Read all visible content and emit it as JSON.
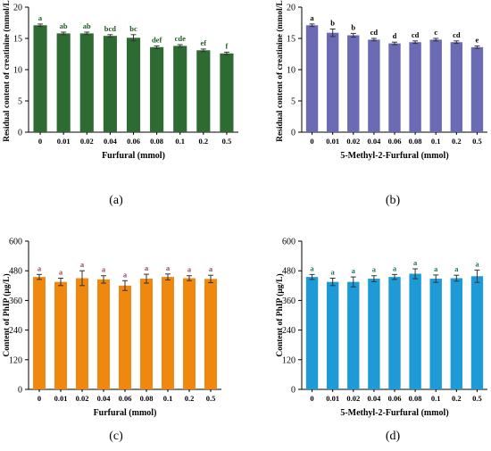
{
  "chart_data": [
    {
      "type": "bar",
      "panel_label": "(a)",
      "xlabel": "Furfural (mmol)",
      "ylabel": "Residual content of creatinine (mmol/L)",
      "categories": [
        "0",
        "0.01",
        "0.02",
        "0.04",
        "0.06",
        "0.08",
        "0.1",
        "0.2",
        "0.5"
      ],
      "values": [
        17.1,
        15.8,
        15.8,
        15.4,
        15.1,
        13.6,
        13.8,
        13.1,
        12.6
      ],
      "errors": [
        0.2,
        0.2,
        0.2,
        0.2,
        0.5,
        0.2,
        0.2,
        0.2,
        0.2
      ],
      "significance": [
        "a",
        "ab",
        "ab",
        "bcd",
        "bc",
        "def",
        "cde",
        "ef",
        "f"
      ],
      "ylim": [
        0,
        20
      ],
      "yticks": [
        "0",
        "5",
        "10",
        "15",
        "20"
      ],
      "bar_color": "#2e6b32",
      "label_color": "#1f5a25",
      "grid": false
    },
    {
      "type": "bar",
      "panel_label": "(b)",
      "xlabel": "5-Methyl-2-Furfural (mmol)",
      "ylabel": "Residual content of creatinine (mmol/L)",
      "categories": [
        "0",
        "0.01",
        "0.02",
        "0.04",
        "0.06",
        "0.08",
        "0.1",
        "0.2",
        "0.5"
      ],
      "values": [
        17.1,
        15.9,
        15.5,
        14.8,
        14.2,
        14.4,
        14.8,
        14.4,
        13.6
      ],
      "errors": [
        0.2,
        0.6,
        0.3,
        0.2,
        0.2,
        0.2,
        0.2,
        0.2,
        0.2
      ],
      "significance": [
        "a",
        "b",
        "b",
        "cd",
        "d",
        "cd",
        "c",
        "cd",
        "e"
      ],
      "ylim": [
        0,
        20
      ],
      "yticks": [
        "0",
        "5",
        "10",
        "15",
        "20"
      ],
      "bar_color": "#6a6ab5",
      "label_color": "#000000",
      "grid": false
    },
    {
      "type": "bar",
      "panel_label": "(c)",
      "xlabel": "Furfural (mmol)",
      "ylabel": "Content of PhIP (μg/L)",
      "categories": [
        "0",
        "0.01",
        "0.02",
        "0.04",
        "0.06",
        "0.08",
        "0.1",
        "0.2",
        "0.5"
      ],
      "values": [
        455,
        435,
        450,
        445,
        420,
        448,
        455,
        450,
        447
      ],
      "errors": [
        10,
        15,
        30,
        15,
        20,
        18,
        12,
        10,
        15
      ],
      "significance": [
        "a",
        "a",
        "a",
        "a",
        "a",
        "a",
        "a",
        "a",
        "a"
      ],
      "ylim": [
        0,
        600
      ],
      "yticks": [
        "0",
        "120",
        "240",
        "360",
        "480",
        "600"
      ],
      "bar_color": "#f0870e",
      "label_color": "#9a3a5a",
      "grid": false
    },
    {
      "type": "bar",
      "panel_label": "(d)",
      "xlabel": "5-Methyl-2-Furfural (mmol)",
      "ylabel": "Content of PhIP (μg/L)",
      "categories": [
        "0",
        "0.01",
        "0.02",
        "0.04",
        "0.06",
        "0.08",
        "0.1",
        "0.2",
        "0.5"
      ],
      "values": [
        455,
        435,
        435,
        448,
        455,
        468,
        448,
        450,
        458
      ],
      "errors": [
        10,
        15,
        20,
        12,
        10,
        20,
        15,
        12,
        25
      ],
      "significance": [
        "a",
        "a",
        "a",
        "a",
        "a",
        "a",
        "a",
        "a",
        "a"
      ],
      "ylim": [
        0,
        600
      ],
      "yticks": [
        "0",
        "120",
        "240",
        "360",
        "480",
        "600"
      ],
      "bar_color": "#1e9bd7",
      "label_color": "#1a6e5a",
      "grid": false
    }
  ]
}
